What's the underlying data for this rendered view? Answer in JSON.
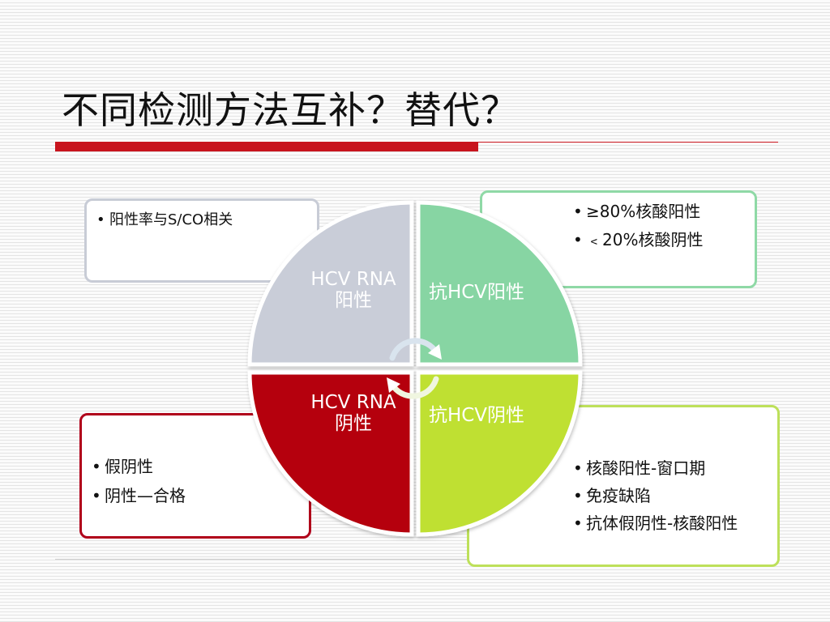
{
  "title": "不同检测方法互补？替代？",
  "colors": {
    "accent": "#c8141e",
    "hcv_rna_positive": "#c9cdd8",
    "anti_hcv_positive": "#87d5a3",
    "hcv_rna_negative": "#b5000b",
    "anti_hcv_negative": "#bfe032"
  },
  "quadrants": {
    "top_left": "HCV RNA阳性",
    "top_right": "抗HCV阳性",
    "bottom_left": "HCV RNA阴性",
    "bottom_right": "抗HCV阴性"
  },
  "boxes": {
    "top_left": [
      "阳性率与S/CO相关"
    ],
    "top_right": [
      "≥80%核酸阳性",
      "﹤20%核酸阴性"
    ],
    "bottom_left": [
      "假阴性",
      "阴性—合格"
    ],
    "bottom_right": [
      "核酸阳性-窗口期",
      "免疫缺陷",
      "抗体假阴性-核酸阳性"
    ]
  }
}
